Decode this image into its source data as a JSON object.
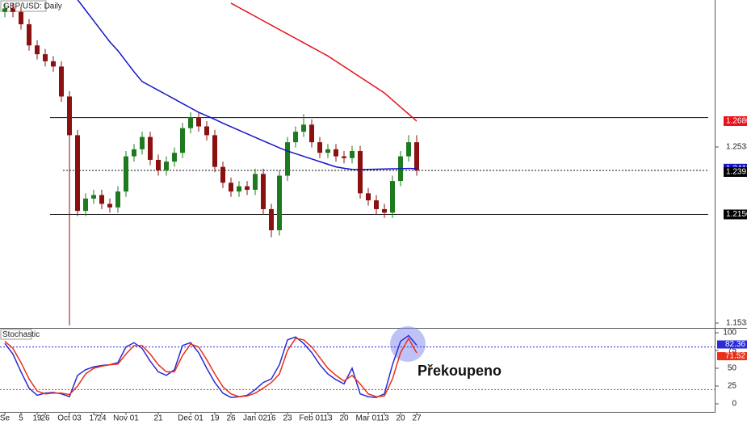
{
  "chart_data": [
    {
      "type": "candlestick",
      "title": "GBP/USD: Daily",
      "categories": [
        "Se",
        null,
        "5",
        null,
        "19",
        "26",
        null,
        null,
        "Oct 03",
        null,
        null,
        "17",
        "24",
        null,
        null,
        "Nov 01",
        null,
        null,
        null,
        "21",
        null,
        null,
        null,
        "Dec 01",
        null,
        null,
        "19",
        null,
        "26",
        null,
        null,
        "Jan 02",
        null,
        "16",
        null,
        "23",
        null,
        null,
        "Feb 01",
        null,
        "13",
        null,
        "20",
        null,
        null,
        "Mar 01",
        null,
        "13",
        null,
        "20",
        null,
        "27"
      ],
      "open": [
        1.33,
        1.332,
        1.33,
        1.323,
        1.311,
        1.306,
        1.302,
        1.299,
        1.282,
        1.26,
        1.217,
        1.224,
        1.226,
        1.221,
        1.219,
        1.228,
        1.248,
        1.252,
        1.259,
        1.246,
        1.24,
        1.245,
        1.25,
        1.264,
        1.27,
        1.265,
        1.26,
        1.242,
        1.233,
        1.228,
        1.231,
        1.229,
        1.238,
        1.218,
        1.206,
        1.237,
        1.256,
        1.262,
        1.266,
        1.256,
        1.25,
        1.252,
        1.248,
        1.247,
        1.251,
        1.227,
        1.223,
        1.218,
        1.216,
        1.234,
        1.248,
        1.256
      ],
      "high": [
        1.335,
        1.335,
        1.333,
        1.326,
        1.314,
        1.309,
        1.305,
        1.302,
        1.285,
        1.263,
        1.227,
        1.229,
        1.229,
        1.224,
        1.231,
        1.251,
        1.255,
        1.262,
        1.262,
        1.249,
        1.248,
        1.253,
        1.267,
        1.273,
        1.273,
        1.268,
        1.263,
        1.245,
        1.236,
        1.234,
        1.234,
        1.241,
        1.241,
        1.221,
        1.24,
        1.259,
        1.265,
        1.272,
        1.269,
        1.259,
        1.255,
        1.255,
        1.251,
        1.254,
        1.254,
        1.23,
        1.226,
        1.221,
        1.237,
        1.251,
        1.26,
        1.26
      ],
      "low": [
        1.327,
        1.327,
        1.32,
        1.308,
        1.303,
        1.299,
        1.296,
        1.279,
        1.152,
        1.214,
        1.214,
        1.221,
        1.218,
        1.216,
        1.216,
        1.225,
        1.245,
        1.249,
        1.243,
        1.237,
        1.237,
        1.242,
        1.247,
        1.261,
        1.262,
        1.257,
        1.239,
        1.23,
        1.225,
        1.225,
        1.226,
        1.226,
        1.215,
        1.202,
        1.203,
        1.234,
        1.253,
        1.259,
        1.253,
        1.247,
        1.247,
        1.245,
        1.244,
        1.244,
        1.224,
        1.22,
        1.215,
        1.213,
        1.213,
        1.231,
        1.245,
        1.237
      ],
      "close": [
        1.332,
        1.33,
        1.323,
        1.311,
        1.306,
        1.302,
        1.299,
        1.282,
        1.26,
        1.217,
        1.224,
        1.226,
        1.221,
        1.219,
        1.228,
        1.248,
        1.252,
        1.259,
        1.246,
        1.24,
        1.245,
        1.25,
        1.264,
        1.27,
        1.265,
        1.26,
        1.242,
        1.233,
        1.228,
        1.231,
        1.229,
        1.238,
        1.218,
        1.206,
        1.237,
        1.256,
        1.262,
        1.266,
        1.256,
        1.25,
        1.252,
        1.248,
        1.247,
        1.251,
        1.227,
        1.223,
        1.218,
        1.216,
        1.234,
        1.248,
        1.256,
        1.24
      ],
      "up_color": "#1e7a1e",
      "down_color": "#8b1010",
      "series": [
        {
          "color": "#1414c8",
          "values": [
            null,
            null,
            null,
            null,
            null,
            null,
            null,
            null,
            null,
            1.337,
            1.331,
            1.325,
            1.319,
            1.313,
            1.308,
            1.302,
            1.296,
            1.2905,
            1.288,
            1.2855,
            1.283,
            1.2805,
            1.278,
            1.2755,
            1.273,
            1.271,
            1.269,
            1.2668,
            1.2648,
            1.2628,
            1.2608,
            1.2588,
            1.2568,
            1.2548,
            1.2528,
            1.251,
            1.2495,
            1.248,
            1.2465,
            1.245,
            1.2435,
            1.242,
            1.2412,
            1.2406,
            1.2405,
            1.2406,
            1.2407,
            1.2408,
            1.2409,
            1.241,
            1.2411,
            1.241
          ]
        },
        {
          "color": "#e8101a",
          "values": [
            null,
            null,
            null,
            null,
            null,
            null,
            null,
            null,
            null,
            null,
            null,
            null,
            null,
            null,
            null,
            null,
            null,
            null,
            null,
            null,
            null,
            null,
            null,
            null,
            null,
            null,
            null,
            null,
            1.335,
            1.3325,
            1.33,
            1.3275,
            1.325,
            1.3225,
            1.32,
            1.3175,
            1.315,
            1.3125,
            1.31,
            1.3075,
            1.305,
            1.302,
            1.299,
            1.296,
            1.293,
            1.29,
            1.287,
            1.284,
            1.28,
            1.276,
            1.272,
            1.268
          ]
        }
      ],
      "ylim": [
        1.151,
        1.3368
      ],
      "yticks": [
        {
          "value": 1.1533,
          "label": "1.1533"
        },
        {
          "value": 1.2533,
          "label": "1.2533"
        }
      ],
      "levels": [
        {
          "value": 1.27,
          "style": "solid"
        },
        {
          "value": 1.24,
          "style": "dotted"
        },
        {
          "value": 1.215,
          "style": "solid"
        }
      ],
      "price_labels": [
        {
          "value": 1.268,
          "label": "1.2680",
          "color": "#e8101a"
        },
        {
          "value": 1.241,
          "label": "1.2410",
          "color": "#1414c8"
        },
        {
          "value": 1.2391,
          "label": "1.2391",
          "color": "#000000"
        },
        {
          "value": 1.215,
          "label": "1.2150",
          "color": "#000000"
        }
      ]
    },
    {
      "type": "line",
      "title": "Stochastic",
      "series": [
        {
          "color": "#2a2ad8",
          "values": [
            85,
            70,
            45,
            22,
            12,
            15,
            16,
            14,
            10,
            40,
            48,
            52,
            54,
            55,
            58,
            80,
            86,
            78,
            60,
            45,
            40,
            48,
            82,
            86,
            72,
            50,
            30,
            15,
            9,
            10,
            12,
            20,
            30,
            35,
            55,
            90,
            94,
            85,
            72,
            55,
            42,
            34,
            28,
            50,
            14,
            10,
            9,
            14,
            55,
            88,
            96,
            82.36
          ]
        },
        {
          "color": "#e8301a",
          "values": [
            88,
            78,
            58,
            35,
            18,
            14,
            15,
            15,
            13,
            25,
            42,
            50,
            53,
            55,
            56,
            70,
            82,
            82,
            70,
            55,
            45,
            45,
            68,
            84,
            80,
            62,
            42,
            24,
            14,
            10,
            11,
            15,
            22,
            30,
            42,
            75,
            92,
            90,
            80,
            65,
            50,
            40,
            32,
            40,
            28,
            14,
            10,
            11,
            35,
            72,
            92,
            71.52
          ]
        }
      ],
      "ylim": [
        0,
        100
      ],
      "yticks": [
        0,
        25,
        50,
        75,
        100
      ],
      "levels": [
        {
          "value": 80,
          "color": "#2a2ad8"
        },
        {
          "value": 20,
          "color": "#e8301a"
        }
      ],
      "annotation": "Překoupeno"
    }
  ]
}
